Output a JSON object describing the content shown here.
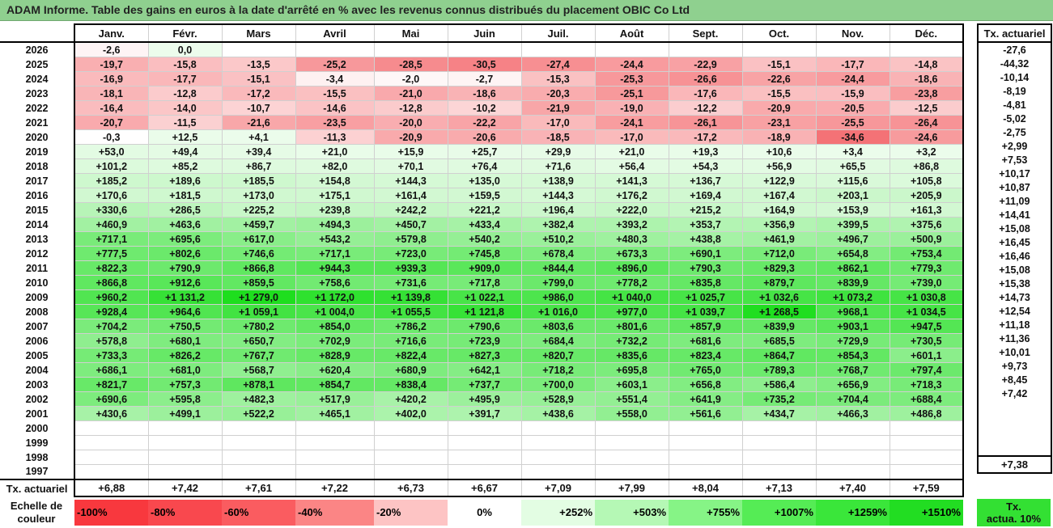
{
  "title": "ADAM Informe. Table des gains en euros à la date d'arrêté en % avec les revenus connus distribués du placement OBIC Co Ltd",
  "months": [
    "Janv.",
    "Févr.",
    "Mars",
    "Avril",
    "Mai",
    "Juin",
    "Juil.",
    "Août",
    "Sept.",
    "Oct.",
    "Nov.",
    "Déc."
  ],
  "side_header": "Tx. actuariel",
  "footer_label": "Tx. actuariel",
  "rows": [
    {
      "year": "2026",
      "vals": [
        "-2,6",
        "0,0",
        "",
        "",
        "",
        "",
        "",
        "",
        "",
        "",
        "",
        ""
      ],
      "tx": "-27,6"
    },
    {
      "year": "2025",
      "vals": [
        "-19,7",
        "-15,8",
        "-13,5",
        "-25,2",
        "-28,5",
        "-30,5",
        "-27,4",
        "-24,4",
        "-22,9",
        "-15,1",
        "-17,7",
        "-14,8"
      ],
      "tx": "-44,32"
    },
    {
      "year": "2024",
      "vals": [
        "-16,9",
        "-17,7",
        "-15,1",
        "-3,4",
        "-2,0",
        "-2,7",
        "-15,3",
        "-25,3",
        "-26,6",
        "-22,6",
        "-24,4",
        "-18,6"
      ],
      "tx": "-10,14"
    },
    {
      "year": "2023",
      "vals": [
        "-18,1",
        "-12,8",
        "-17,2",
        "-15,5",
        "-21,0",
        "-18,6",
        "-20,3",
        "-25,1",
        "-17,6",
        "-15,5",
        "-15,9",
        "-23,8"
      ],
      "tx": "-8,19"
    },
    {
      "year": "2022",
      "vals": [
        "-16,4",
        "-14,0",
        "-10,7",
        "-14,6",
        "-12,8",
        "-10,2",
        "-21,9",
        "-19,0",
        "-12,2",
        "-20,9",
        "-20,5",
        "-12,5"
      ],
      "tx": "-4,81"
    },
    {
      "year": "2021",
      "vals": [
        "-20,7",
        "-11,5",
        "-21,6",
        "-23,5",
        "-20,0",
        "-22,2",
        "-17,0",
        "-24,1",
        "-26,1",
        "-23,1",
        "-25,5",
        "-26,4"
      ],
      "tx": "-5,02"
    },
    {
      "year": "2020",
      "vals": [
        "-0,3",
        "+12,5",
        "+4,1",
        "-11,3",
        "-20,9",
        "-20,6",
        "-18,5",
        "-17,0",
        "-17,2",
        "-18,9",
        "-34,6",
        "-24,6"
      ],
      "tx": "-2,75"
    },
    {
      "year": "2019",
      "vals": [
        "+53,0",
        "+49,4",
        "+39,4",
        "+21,0",
        "+15,9",
        "+25,7",
        "+29,9",
        "+21,0",
        "+19,3",
        "+10,6",
        "+3,4",
        "+3,2"
      ],
      "tx": "+2,99"
    },
    {
      "year": "2018",
      "vals": [
        "+101,2",
        "+85,2",
        "+86,7",
        "+82,0",
        "+70,1",
        "+76,4",
        "+71,6",
        "+56,4",
        "+54,3",
        "+56,9",
        "+65,5",
        "+86,8"
      ],
      "tx": "+7,53"
    },
    {
      "year": "2017",
      "vals": [
        "+185,2",
        "+189,6",
        "+185,5",
        "+154,8",
        "+144,3",
        "+135,0",
        "+138,9",
        "+141,3",
        "+136,7",
        "+122,9",
        "+115,6",
        "+105,8"
      ],
      "tx": "+10,17"
    },
    {
      "year": "2016",
      "vals": [
        "+170,6",
        "+181,5",
        "+173,0",
        "+175,1",
        "+161,4",
        "+159,5",
        "+144,3",
        "+176,2",
        "+169,4",
        "+167,4",
        "+203,1",
        "+205,9"
      ],
      "tx": "+10,87"
    },
    {
      "year": "2015",
      "vals": [
        "+330,6",
        "+286,5",
        "+225,2",
        "+239,8",
        "+242,2",
        "+221,2",
        "+196,4",
        "+222,0",
        "+215,2",
        "+164,9",
        "+153,9",
        "+161,3"
      ],
      "tx": "+11,09"
    },
    {
      "year": "2014",
      "vals": [
        "+460,9",
        "+463,6",
        "+459,7",
        "+494,3",
        "+450,7",
        "+433,4",
        "+382,4",
        "+393,2",
        "+353,7",
        "+356,9",
        "+399,5",
        "+375,6"
      ],
      "tx": "+14,41"
    },
    {
      "year": "2013",
      "vals": [
        "+717,1",
        "+695,6",
        "+617,0",
        "+543,2",
        "+579,8",
        "+540,2",
        "+510,2",
        "+480,3",
        "+438,8",
        "+461,9",
        "+496,7",
        "+500,9"
      ],
      "tx": "+15,08"
    },
    {
      "year": "2012",
      "vals": [
        "+777,5",
        "+802,6",
        "+746,6",
        "+717,1",
        "+723,0",
        "+745,8",
        "+678,4",
        "+673,3",
        "+690,1",
        "+712,0",
        "+654,8",
        "+753,4"
      ],
      "tx": "+16,45"
    },
    {
      "year": "2011",
      "vals": [
        "+822,3",
        "+790,9",
        "+866,8",
        "+944,3",
        "+939,3",
        "+909,0",
        "+844,4",
        "+896,0",
        "+790,3",
        "+829,3",
        "+862,1",
        "+779,3"
      ],
      "tx": "+16,46"
    },
    {
      "year": "2010",
      "vals": [
        "+866,8",
        "+912,6",
        "+859,5",
        "+758,6",
        "+731,6",
        "+717,8",
        "+799,0",
        "+778,2",
        "+835,8",
        "+879,7",
        "+839,9",
        "+739,0"
      ],
      "tx": "+15,08"
    },
    {
      "year": "2009",
      "vals": [
        "+960,2",
        "+1 131,2",
        "+1 279,0",
        "+1 172,0",
        "+1 139,8",
        "+1 022,1",
        "+986,0",
        "+1 040,0",
        "+1 025,7",
        "+1 032,6",
        "+1 073,2",
        "+1 030,8"
      ],
      "tx": "+15,38"
    },
    {
      "year": "2008",
      "vals": [
        "+928,4",
        "+964,6",
        "+1 059,1",
        "+1 004,0",
        "+1 055,5",
        "+1 121,8",
        "+1 016,0",
        "+977,0",
        "+1 039,7",
        "+1 268,5",
        "+968,1",
        "+1 034,5"
      ],
      "tx": "+14,73"
    },
    {
      "year": "2007",
      "vals": [
        "+704,2",
        "+750,5",
        "+780,2",
        "+854,0",
        "+786,2",
        "+790,6",
        "+803,6",
        "+801,6",
        "+857,9",
        "+839,9",
        "+903,1",
        "+947,5"
      ],
      "tx": "+12,54"
    },
    {
      "year": "2006",
      "vals": [
        "+578,8",
        "+680,1",
        "+650,7",
        "+702,9",
        "+716,6",
        "+723,9",
        "+684,4",
        "+732,2",
        "+681,6",
        "+685,5",
        "+729,9",
        "+730,5"
      ],
      "tx": "+11,18"
    },
    {
      "year": "2005",
      "vals": [
        "+733,3",
        "+826,2",
        "+767,7",
        "+828,9",
        "+822,4",
        "+827,3",
        "+820,7",
        "+835,6",
        "+823,4",
        "+864,7",
        "+854,3",
        "+601,1"
      ],
      "tx": "+11,36"
    },
    {
      "year": "2004",
      "vals": [
        "+686,1",
        "+681,0",
        "+568,7",
        "+620,4",
        "+680,9",
        "+642,1",
        "+718,2",
        "+695,8",
        "+765,0",
        "+789,3",
        "+768,7",
        "+797,4"
      ],
      "tx": "+10,01"
    },
    {
      "year": "2003",
      "vals": [
        "+821,7",
        "+757,3",
        "+878,1",
        "+854,7",
        "+838,4",
        "+737,7",
        "+700,0",
        "+603,1",
        "+656,8",
        "+586,4",
        "+656,9",
        "+718,3"
      ],
      "tx": "+9,73"
    },
    {
      "year": "2002",
      "vals": [
        "+690,6",
        "+595,8",
        "+482,3",
        "+517,9",
        "+420,2",
        "+495,9",
        "+528,9",
        "+551,4",
        "+641,9",
        "+735,2",
        "+704,4",
        "+688,4"
      ],
      "tx": "+8,45"
    },
    {
      "year": "2001",
      "vals": [
        "+430,6",
        "+499,1",
        "+522,2",
        "+465,1",
        "+402,0",
        "+391,7",
        "+438,6",
        "+558,0",
        "+561,6",
        "+434,7",
        "+466,3",
        "+486,8"
      ],
      "tx": "+7,42"
    },
    {
      "year": "2000",
      "vals": [
        "",
        "",
        "",
        "",
        "",
        "",
        "",
        "",
        "",
        "",
        "",
        ""
      ],
      "tx": ""
    },
    {
      "year": "1999",
      "vals": [
        "",
        "",
        "",
        "",
        "",
        "",
        "",
        "",
        "",
        "",
        "",
        ""
      ],
      "tx": ""
    },
    {
      "year": "1998",
      "vals": [
        "",
        "",
        "",
        "",
        "",
        "",
        "",
        "",
        "",
        "",
        "",
        ""
      ],
      "tx": ""
    },
    {
      "year": "1997",
      "vals": [
        "",
        "",
        "",
        "",
        "",
        "",
        "",
        "",
        "",
        "",
        "",
        ""
      ],
      "tx": ""
    }
  ],
  "footer_vals": [
    "+6,88",
    "+7,42",
    "+7,61",
    "+7,22",
    "+6,73",
    "+6,67",
    "+7,09",
    "+7,99",
    "+8,04",
    "+7,13",
    "+7,40",
    "+7,59"
  ],
  "footer_tx": "+7,38",
  "legend": {
    "label_line1": "Echelle de",
    "label_line2": "couleur",
    "scale": [
      {
        "text": "-100%",
        "color": "#f8383e"
      },
      {
        "text": "-80%",
        "color": "#f9484e"
      },
      {
        "text": "-60%",
        "color": "#fa5c60"
      },
      {
        "text": "-40%",
        "color": "#fb8585"
      },
      {
        "text": "-20%",
        "color": "#fdc4c4"
      },
      {
        "text": "0%",
        "color": "#ffffff"
      },
      {
        "text": "+252%",
        "color": "#e3fde3"
      },
      {
        "text": "+503%",
        "color": "#b5f8b5"
      },
      {
        "text": "+755%",
        "color": "#86f486"
      },
      {
        "text": "+1007%",
        "color": "#55ec55"
      },
      {
        "text": "+1259%",
        "color": "#3ae63a"
      },
      {
        "text": "+1510%",
        "color": "#22dd22"
      }
    ],
    "tx_line1": "Tx.",
    "tx_line2": "actua. 10%",
    "tx_color": "#33e033"
  },
  "colors": {
    "title_bg": "#8fd08f",
    "negative_max": "#f8383e",
    "positive_max": "#22dd22"
  }
}
